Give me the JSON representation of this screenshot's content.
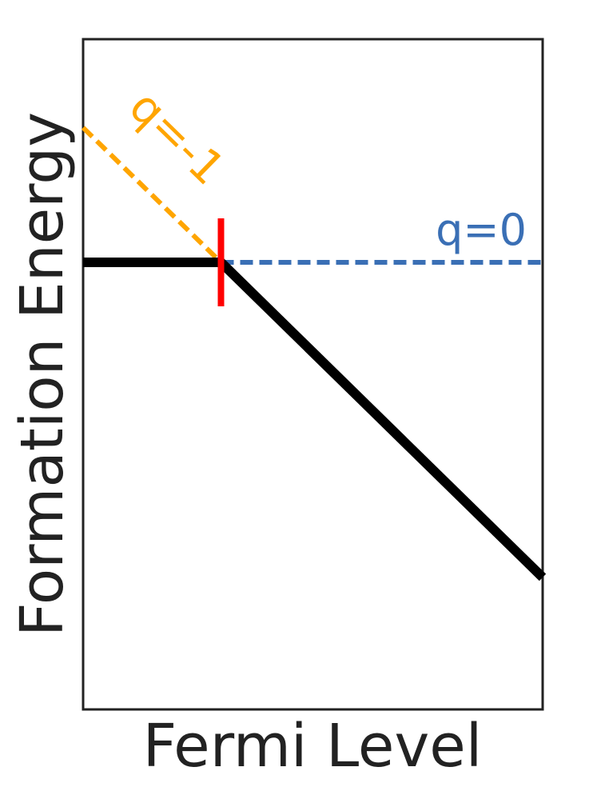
{
  "chart_data": {
    "type": "line",
    "xlabel": "Fermi Level",
    "ylabel": "Formation Energy",
    "xlim": [
      0,
      1
    ],
    "ylim": [
      0,
      1
    ],
    "grid": false,
    "ticks": false,
    "series": [
      {
        "name": "q=-1",
        "style": "dashed",
        "color": "#FFA500",
        "x": [
          0,
          0.3
        ],
        "y": [
          0.868,
          0.667
        ]
      },
      {
        "name": "q=0",
        "style": "dashed",
        "color": "#3A6FB5",
        "x": [
          0.3,
          1
        ],
        "y": [
          0.667,
          0.667
        ]
      },
      {
        "name": "",
        "style": "solid",
        "color": "#000000",
        "x": [
          0,
          0.3,
          1
        ],
        "y": [
          0.667,
          0.667,
          0.197
        ]
      }
    ],
    "transition_marker": {
      "x": 0.3,
      "y": 0.667,
      "color": "#FF0000"
    }
  }
}
